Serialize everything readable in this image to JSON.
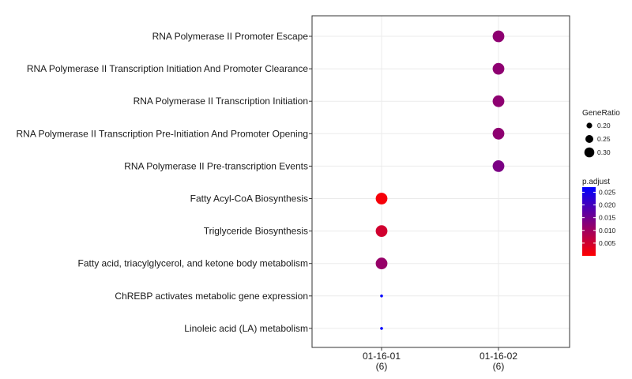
{
  "chart_data": {
    "type": "scatter",
    "title": "",
    "xlabel": "",
    "ylabel": "",
    "categories_x": [
      {
        "name": "01-16-01",
        "sub": "(6)"
      },
      {
        "name": "01-16-02",
        "sub": "(6)"
      }
    ],
    "categories_y": [
      "RNA Polymerase II Promoter Escape",
      "RNA Polymerase II Transcription Initiation And Promoter Clearance",
      "RNA Polymerase II Transcription Initiation",
      "RNA Polymerase II Transcription Pre-Initiation And Promoter Opening",
      "RNA Polymerase II Pre-transcription Events",
      "Fatty Acyl-CoA Biosynthesis",
      "Triglyceride Biosynthesis",
      "Fatty acid, triacylglycerol, and ketone body metabolism",
      "ChREBP activates metabolic gene expression",
      "Linoleic acid (LA) metabolism"
    ],
    "points": [
      {
        "x": "01-16-02",
        "y": "RNA Polymerase II Promoter Escape",
        "gene_ratio": 0.333,
        "p_adjust": 0.012
      },
      {
        "x": "01-16-02",
        "y": "RNA Polymerase II Transcription Initiation And Promoter Clearance",
        "gene_ratio": 0.333,
        "p_adjust": 0.012
      },
      {
        "x": "01-16-02",
        "y": "RNA Polymerase II Transcription Initiation",
        "gene_ratio": 0.333,
        "p_adjust": 0.012
      },
      {
        "x": "01-16-02",
        "y": "RNA Polymerase II Transcription Pre-Initiation And Promoter Opening",
        "gene_ratio": 0.333,
        "p_adjust": 0.012
      },
      {
        "x": "01-16-02",
        "y": "RNA Polymerase II Pre-transcription Events",
        "gene_ratio": 0.333,
        "p_adjust": 0.014
      },
      {
        "x": "01-16-01",
        "y": "Fatty Acyl-CoA Biosynthesis",
        "gene_ratio": 0.333,
        "p_adjust": 0.001
      },
      {
        "x": "01-16-01",
        "y": "Triglyceride Biosynthesis",
        "gene_ratio": 0.333,
        "p_adjust": 0.005
      },
      {
        "x": "01-16-01",
        "y": "Fatty acid, triacylglycerol, and ketone body metabolism",
        "gene_ratio": 0.333,
        "p_adjust": 0.011
      },
      {
        "x": "01-16-01",
        "y": "ChREBP activates metabolic gene expression",
        "gene_ratio": 0.167,
        "p_adjust": 0.027
      },
      {
        "x": "01-16-01",
        "y": "Linoleic acid (LA) metabolism",
        "gene_ratio": 0.167,
        "p_adjust": 0.027
      }
    ],
    "legend_size": {
      "title": "GeneRatio",
      "values": [
        0.2,
        0.25,
        0.3
      ],
      "labels": [
        "0.20",
        "0.25",
        "0.30"
      ]
    },
    "legend_color": {
      "title": "p.adjust",
      "values": [
        0.025,
        0.02,
        0.015,
        0.01,
        0.005
      ],
      "labels": [
        "0.025",
        "0.020",
        "0.015",
        "0.010",
        "0.005"
      ],
      "range": [
        0.0,
        0.027
      ],
      "low_color": "#ff0000",
      "high_color": "#0000ff"
    },
    "grid": true,
    "legend_position": "right"
  }
}
